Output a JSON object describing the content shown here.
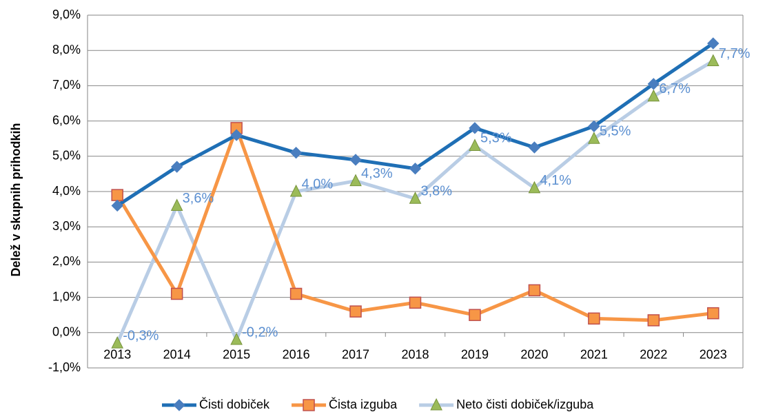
{
  "chart_data": {
    "type": "line",
    "y_label": "Delež v skupnih prihodkih",
    "categories": [
      "2013",
      "2014",
      "2015",
      "2016",
      "2017",
      "2018",
      "2019",
      "2020",
      "2021",
      "2022",
      "2023"
    ],
    "series": [
      {
        "name": "Čisti dobiček",
        "color": "#1f6fb5",
        "marker": "diamond",
        "marker_color": "#4a7ebf",
        "values": [
          3.6,
          4.7,
          5.6,
          5.1,
          4.9,
          4.65,
          5.8,
          5.25,
          5.85,
          7.05,
          8.2
        ]
      },
      {
        "name": "Čista izguba",
        "color": "#f79646",
        "marker": "square",
        "marker_color": "#f79646",
        "values": [
          3.9,
          1.1,
          5.8,
          1.1,
          0.6,
          0.85,
          0.5,
          1.2,
          0.4,
          0.35,
          0.55
        ]
      },
      {
        "name": "Neto čisti dobiček/izguba",
        "color": "#b9cde5",
        "marker": "triangle",
        "marker_color": "#9bbb59",
        "values": [
          -0.3,
          3.6,
          -0.2,
          4.0,
          4.3,
          3.8,
          5.3,
          4.1,
          5.5,
          6.7,
          7.7
        ],
        "value_labels": [
          "-0,3%",
          "3,6%",
          "-0,2%",
          "4,0%",
          "4,3%",
          "3,8%",
          "5,3%",
          "4,1%",
          "5,5%",
          "6,7%",
          "7,7%"
        ]
      }
    ],
    "ylim": [
      -1,
      9
    ],
    "yticks": [
      {
        "value": -1,
        "label": "-1,0%"
      },
      {
        "value": 0,
        "label": "0,0%"
      },
      {
        "value": 1,
        "label": "1,0%"
      },
      {
        "value": 2,
        "label": "2,0%"
      },
      {
        "value": 3,
        "label": "3,0%"
      },
      {
        "value": 4,
        "label": "4,0%"
      },
      {
        "value": 5,
        "label": "5,0%"
      },
      {
        "value": 6,
        "label": "6,0%"
      },
      {
        "value": 7,
        "label": "7,0%"
      },
      {
        "value": 8,
        "label": "8,0%"
      },
      {
        "value": 9,
        "label": "9,0%"
      }
    ],
    "grid": true,
    "legend": "bottom"
  }
}
